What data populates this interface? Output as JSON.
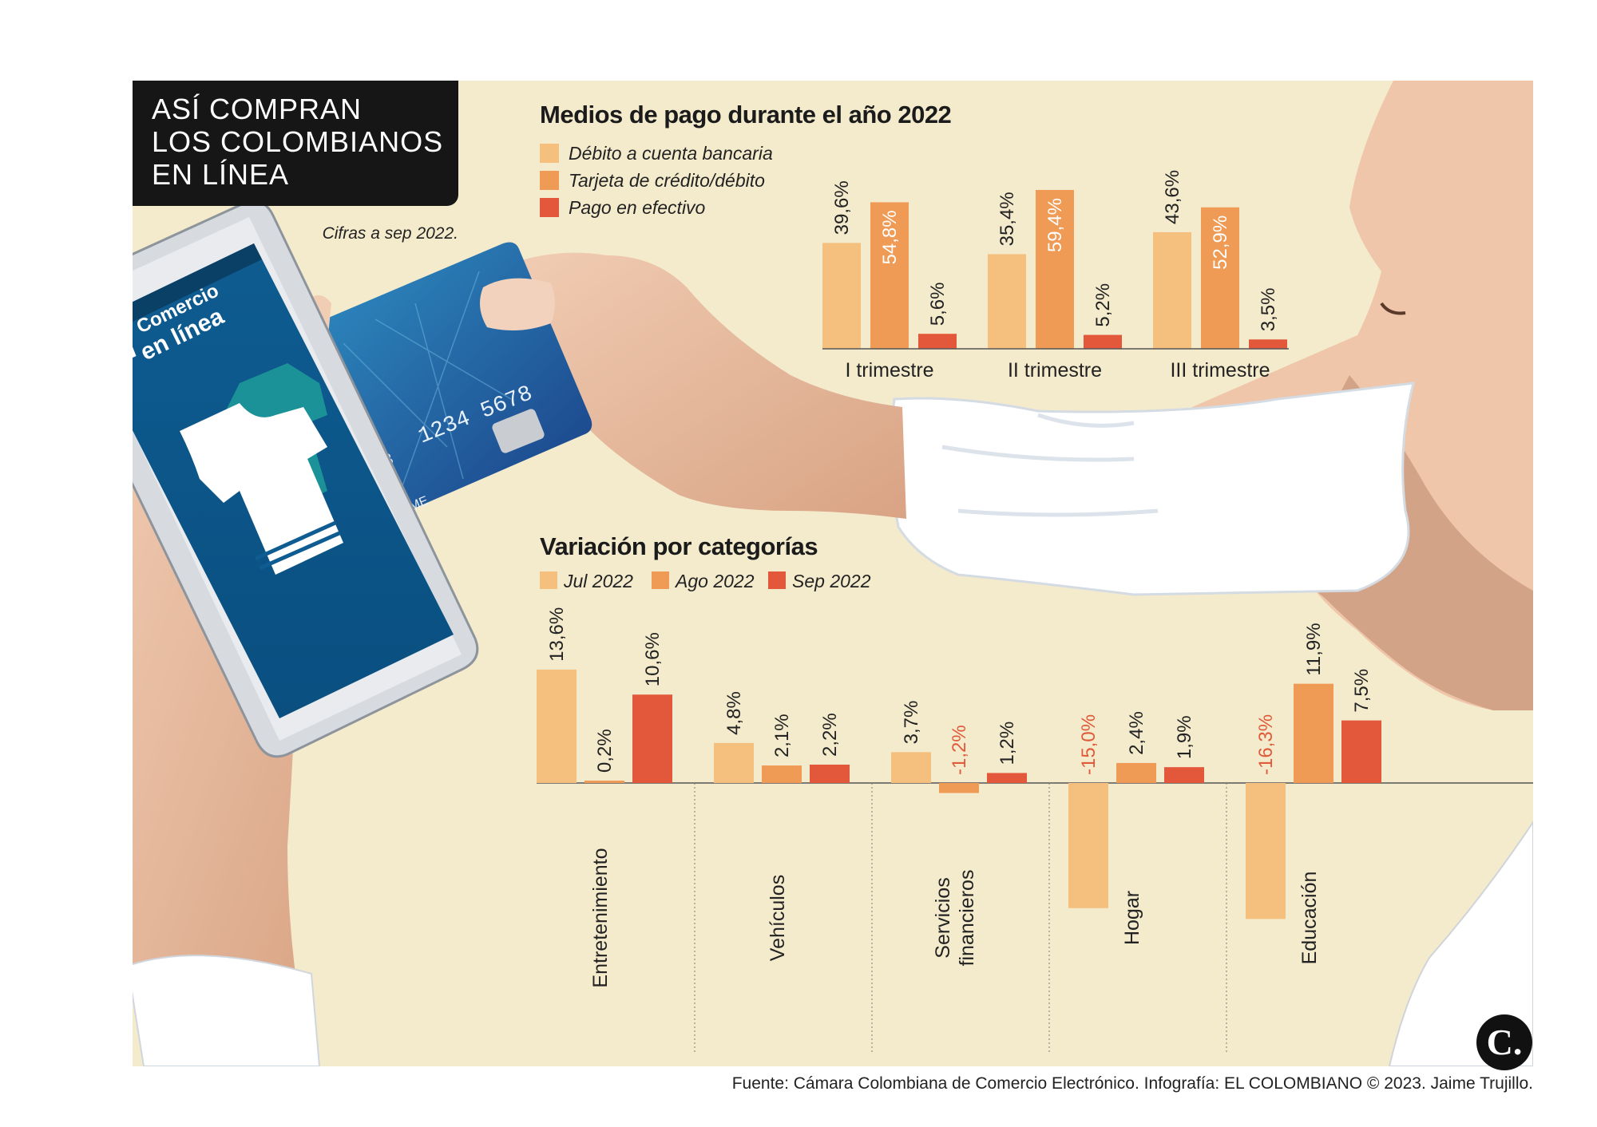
{
  "header": {
    "title": "ASÍ COMPRAN\nLOS COLOMBIANOS\nEN LÍNEA",
    "note": "Cifras a sep 2022."
  },
  "phone": {
    "app_name_line1": "Comercio",
    "app_name_line2": "en línea"
  },
  "card": {
    "number_fragment": "1234 5678",
    "digits_left": "78",
    "name_fragment": "ME",
    "chip_label": "CPF CARD"
  },
  "footer": {
    "source": "Fuente: Cámara Colombiana de Comercio Electrónico. Infografía: EL COLOMBIANO © 2023. Jaime Trujillo.",
    "logo": "C."
  },
  "colors": {
    "background": "#f4ebcd",
    "light_orange": "#f5c07e",
    "mid_orange": "#ef9a55",
    "red_orange": "#e3573a",
    "negative_label": "#e05a3a"
  },
  "chart_data": [
    {
      "type": "bar",
      "title": "Medios de pago durante el año 2022",
      "categories": [
        "I trimestre",
        "II  trimestre",
        "III trimestre"
      ],
      "series": [
        {
          "name": "Débito a cuenta bancaria",
          "color": "#f5c07e",
          "values": [
            39.6,
            35.4,
            43.6
          ],
          "labels": [
            "39,6%",
            "35,4%",
            "43,6%"
          ]
        },
        {
          "name": "Tarjeta de crédito/débito",
          "color": "#ef9a55",
          "values": [
            54.8,
            59.4,
            52.9
          ],
          "labels": [
            "54,8%",
            "59,4%",
            "52,9%"
          ]
        },
        {
          "name": "Pago en efectivo",
          "color": "#e3573a",
          "values": [
            5.6,
            5.2,
            3.5
          ],
          "labels": [
            "5,6%",
            "5,2%",
            "3,5%"
          ]
        }
      ],
      "ylim": [
        0,
        60
      ],
      "grid": false,
      "legend": "top-left"
    },
    {
      "type": "bar",
      "title": "Variación por categorías",
      "categories": [
        "Entretenimiento",
        "Vehículos",
        "Servicios\nfinancieros",
        "Hogar",
        "Educación"
      ],
      "series": [
        {
          "name": "Jul 2022",
          "color": "#f5c07e",
          "values": [
            13.6,
            4.8,
            3.7,
            -15.0,
            -16.3
          ],
          "labels": [
            "13,6%",
            "4,8%",
            "3,7%",
            "-15,0%",
            "-16,3%"
          ]
        },
        {
          "name": "Ago 2022",
          "color": "#ef9a55",
          "values": [
            0.2,
            2.1,
            -1.2,
            2.4,
            11.9
          ],
          "labels": [
            "0,2%",
            "2,1%",
            "-1,2%",
            "2,4%",
            "11,9%"
          ]
        },
        {
          "name": "Sep 2022",
          "color": "#e3573a",
          "values": [
            10.6,
            2.2,
            1.2,
            1.9,
            7.5
          ],
          "labels": [
            "10,6%",
            "2,2%",
            "1,2%",
            "1,9%",
            "7,5%"
          ]
        }
      ],
      "ylim": [
        -17,
        14
      ],
      "grid": false,
      "legend": "top-left"
    }
  ]
}
